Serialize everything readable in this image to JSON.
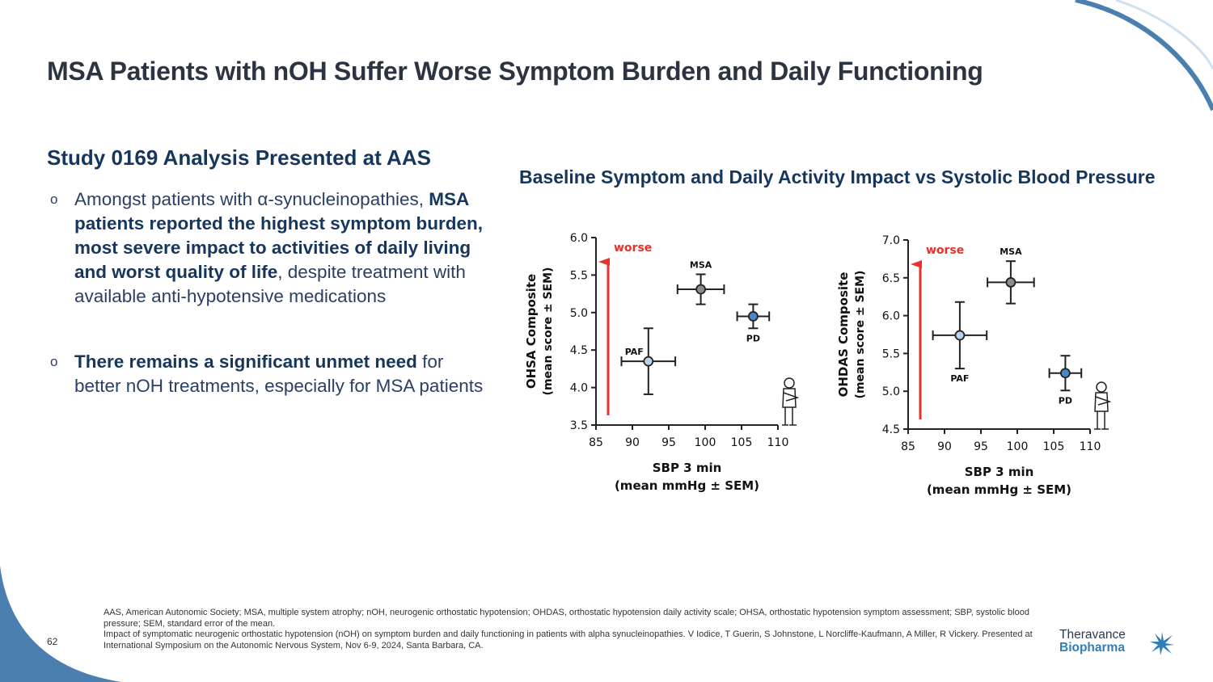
{
  "slide": {
    "title": "MSA Patients with nOH Suffer Worse Symptom Burden and Daily Functioning",
    "subheading": "Study 0169 Analysis Presented at AAS",
    "bullet_marker": "o",
    "bullet1": {
      "pre": "Amongst patients with α-synucleinopathies, ",
      "bold": "MSA patients reported the highest symptom burden, most severe impact to activities of daily living and worst quality of life",
      "post": ", despite treatment with available anti-hypotensive medications"
    },
    "bullet2": {
      "bold": "There remains a significant unmet need",
      "post": " for better nOH treatments, especially for MSA patients"
    },
    "chart_title": "Baseline Symptom and Daily Activity Impact vs Systolic Blood Pressure",
    "footnote_line1": "AAS, American Autonomic Society; MSA, multiple system atrophy; nOH, neurogenic orthostatic hypotension; OHDAS, orthostatic hypotension daily activity scale; OHSA, orthostatic hypotension symptom assessment; SBP, systolic blood pressure; SEM, standard error of the mean.",
    "footnote_line2": "Impact of symptomatic neurogenic orthostatic hypotension (nOH) on symptom burden and daily functioning in patients with alpha synucleinopathies.  V Iodice, T Guerin, S Johnstone, L Norcliffe-Kaufmann, A Miller, R Vickery.  Presented at International Symposium on the Autonomic Nervous System, Nov 6-9, 2024, Santa Barbara, CA.",
    "page_number": "62",
    "logo_line1": "Theravance",
    "logo_line2": "Biopharma",
    "colors": {
      "navy": "#17365d",
      "accent_blue": "#4a86c8",
      "arrow_red": "#e8322b",
      "point_gray": "#8c8c8c",
      "point_light_blue": "#b9d3ee",
      "point_blue": "#4a86c8"
    }
  },
  "chart_data": [
    {
      "type": "scatter",
      "title": "",
      "xlabel": "SBP 3 min",
      "xlabel2": "(mean mmHg ± SEM)",
      "ylabel": "OHSA Composite",
      "ylabel2": "(mean score ± SEM)",
      "xlim": [
        85,
        110
      ],
      "ylim": [
        3.5,
        6.0
      ],
      "xticks": [
        85,
        90,
        95,
        100,
        105,
        110
      ],
      "yticks": [
        3.5,
        4.0,
        4.5,
        5.0,
        5.5,
        6.0
      ],
      "ytick_labels": [
        "3.5",
        "4.0",
        "4.5",
        "5.0",
        "5.5",
        "6.0"
      ],
      "arrow_label": "worse",
      "points": [
        {
          "label": "PAF",
          "x": 92.2,
          "y": 4.35,
          "xerr": 3.7,
          "yerr": 0.44,
          "color": "#b9d3ee",
          "label_pos": "upper-left"
        },
        {
          "label": "MSA",
          "x": 99.4,
          "y": 5.31,
          "xerr": 3.2,
          "yerr": 0.2,
          "color": "#8c8c8c",
          "label_pos": "above"
        },
        {
          "label": "PD",
          "x": 106.6,
          "y": 4.95,
          "xerr": 2.2,
          "yerr": 0.16,
          "color": "#4a86c8",
          "label_pos": "below"
        }
      ]
    },
    {
      "type": "scatter",
      "title": "",
      "xlabel": "SBP 3 min",
      "xlabel2": "(mean mmHg ± SEM)",
      "ylabel": "OHDAS Composite",
      "ylabel2": "(mean score ± SEM)",
      "xlim": [
        85,
        110
      ],
      "ylim": [
        4.5,
        7.0
      ],
      "xticks": [
        85,
        90,
        95,
        100,
        105,
        110
      ],
      "yticks": [
        4.5,
        5.0,
        5.5,
        6.0,
        6.5,
        7.0
      ],
      "ytick_labels": [
        "4.5",
        "5.0",
        "5.5",
        "6.0",
        "6.5",
        "7.0"
      ],
      "arrow_label": "worse",
      "points": [
        {
          "label": "PAF",
          "x": 92.1,
          "y": 5.74,
          "xerr": 3.7,
          "yerr": 0.44,
          "color": "#b9d3ee",
          "label_pos": "below"
        },
        {
          "label": "MSA",
          "x": 99.1,
          "y": 6.44,
          "xerr": 3.2,
          "yerr": 0.28,
          "color": "#8c8c8c",
          "label_pos": "above"
        },
        {
          "label": "PD",
          "x": 106.6,
          "y": 5.24,
          "xerr": 2.2,
          "yerr": 0.23,
          "color": "#4a86c8",
          "label_pos": "below"
        }
      ]
    }
  ]
}
